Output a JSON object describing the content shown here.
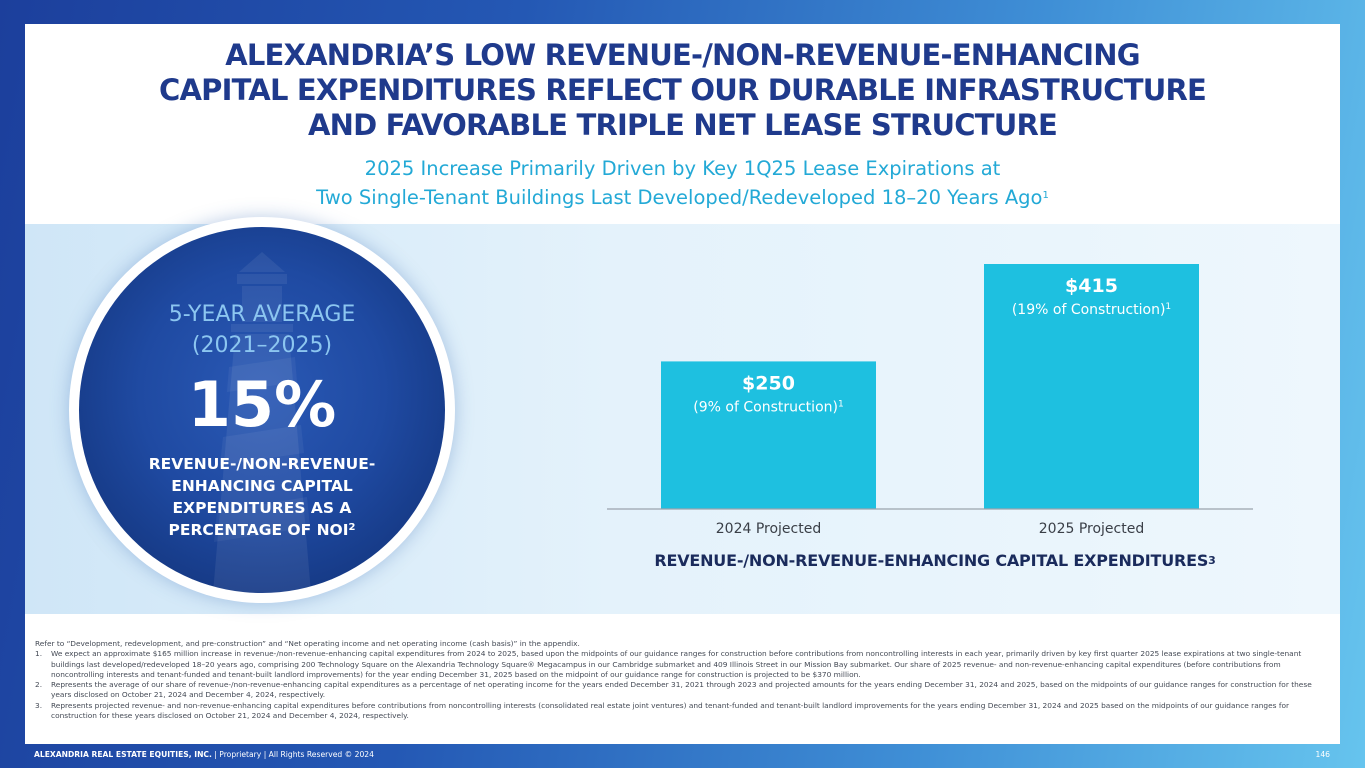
{
  "title": {
    "line1": "ALEXANDRIA’S LOW REVENUE-/NON-REVENUE-ENHANCING",
    "line2": "CAPITAL EXPENDITURES REFLECT OUR DURABLE INFRASTRUCTURE",
    "line3": "AND FAVORABLE TRIPLE NET LEASE STRUCTURE"
  },
  "subtitle": {
    "line1": "2025 Increase Primarily Driven by Key 1Q25 Lease Expirations at",
    "line2": "Two Single-Tenant Buildings Last Developed/Redeveloped 18–20 Years Ago",
    "sup": "1"
  },
  "circle": {
    "avg_line1": "5-YEAR AVERAGE",
    "avg_line2": "(2021–2025)",
    "percent": "15%",
    "desc": "REVENUE-/NON-REVENUE-ENHANCING CAPITAL EXPENDITURES AS A PERCENTAGE OF NOI",
    "desc_sup": "2",
    "icon": "lighthouse-icon"
  },
  "chart_data": {
    "type": "bar",
    "title": "REVENUE-/NON-REVENUE-ENHANCING CAPITAL EXPENDITURES",
    "title_sup": "3",
    "categories": [
      "2024 Projected",
      "2025 Projected"
    ],
    "values": [
      250,
      415
    ],
    "value_labels": [
      "$250",
      "$415"
    ],
    "sub_labels": [
      "(9% of Construction)",
      "(19% of Construction)"
    ],
    "sub_label_sup": "1",
    "ylim": [
      0,
      415
    ],
    "bar_color": "#1ec0e0",
    "axis_color": "#9aa3ad",
    "grid": false
  },
  "footnotes": {
    "intro": "Refer to “Development, redevelopment, and pre-construction” and “Net operating income and net operating income (cash basis)” in the appendix.",
    "items": [
      {
        "num": "1.",
        "text": "We expect an approximate $165 million increase in revenue-/non-revenue-enhancing capital expenditures from 2024 to 2025, based upon the midpoints of our guidance ranges for construction before contributions from noncontrolling interests in each year, primarily driven by key first quarter 2025 lease expirations at two single-tenant buildings last developed/redeveloped 18–20 years ago, comprising 200 Technology Square on the Alexandria Technology Square® Megacampus in our Cambridge submarket and 409 Illinois Street in our Mission Bay submarket. Our share of 2025 revenue- and non-revenue-enhancing capital expenditures (before contributions from noncontrolling interests and tenant-funded and tenant-built landlord improvements) for the year ending December 31, 2025 based on the midpoint of our guidance range for construction is projected to be $370 million."
      },
      {
        "num": "2.",
        "text": "Represents the average of our share of revenue-/non-revenue-enhancing capital expenditures as a percentage of net operating income for the years ended December 31, 2021 through 2023 and projected amounts for the years ending December 31, 2024 and 2025, based on the midpoints of our guidance ranges for construction for these years disclosed on October 21, 2024 and December 4, 2024, respectively."
      },
      {
        "num": "3.",
        "text": "Represents projected revenue- and non-revenue-enhancing capital expenditures before contributions from noncontrolling interests (consolidated real estate joint ventures) and tenant-funded and tenant-built landlord improvements for the years ending December 31, 2024 and 2025 based on the midpoints of our guidance ranges for construction for these years disclosed on October 21, 2024 and December 4, 2024, respectively."
      }
    ]
  },
  "footer": {
    "company": "ALEXANDRIA REAL ESTATE EQUITIES, INC.",
    "rights": " | Proprietary | All Rights Reserved © 2024",
    "page": "146"
  },
  "colors": {
    "title": "#1f3a8c",
    "subtitle": "#23a9d6",
    "bar": "#1ec0e0",
    "circle": "#1f4aa2"
  }
}
